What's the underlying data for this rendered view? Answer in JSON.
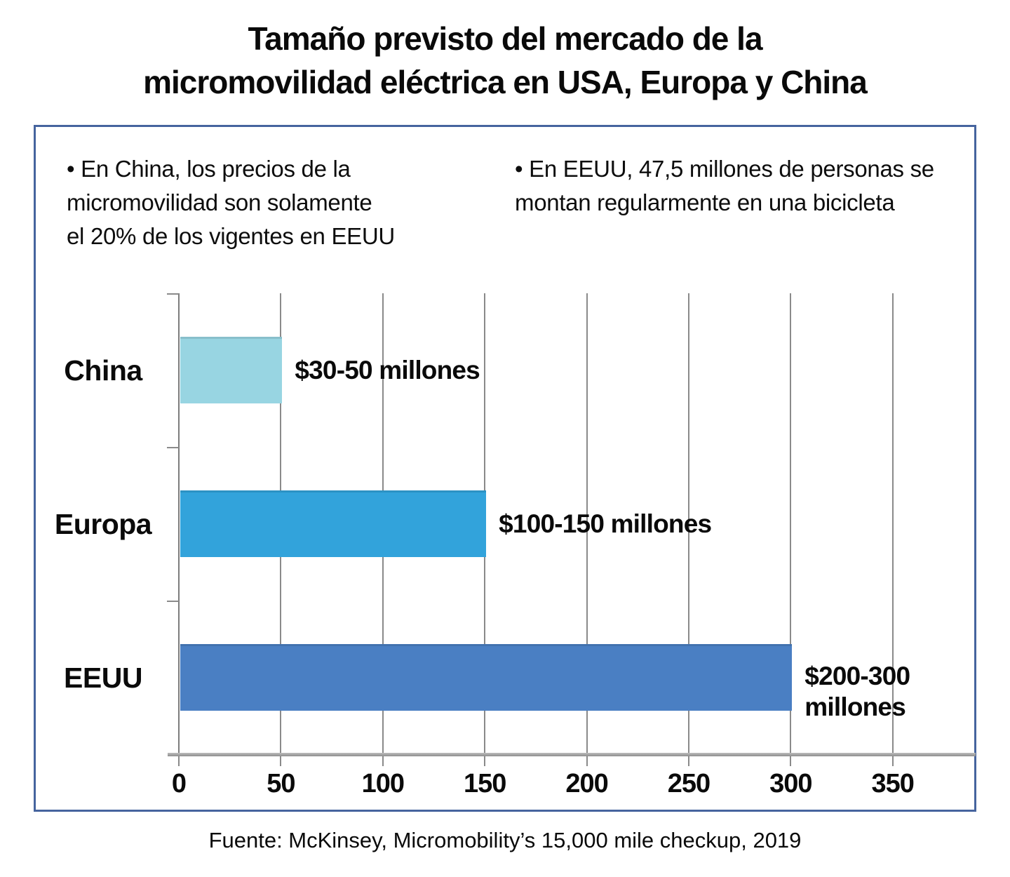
{
  "title": {
    "line1": "Tamaño previsto del mercado de la",
    "line2": "micromovilidad eléctrica en USA, Europa y China"
  },
  "bullets": {
    "left": {
      "line1": "• En China, los precios de la",
      "line2": "micromovilidad son solamente",
      "line3": "el 20% de los vigentes en EEUU"
    },
    "right": {
      "line1": "• En EEUU, 47,5 millones de personas se",
      "line2": "montan regularmente en una bicicleta"
    }
  },
  "source": "Fuente: McKinsey, Micromobility’s 15,000 mile checkup, 2019",
  "colors": {
    "panel_border": "#46649e",
    "gridline": "#8a8a8a",
    "axis": "#9a9a9a",
    "text": "#0a0a0a"
  },
  "chart_data": {
    "type": "bar",
    "orientation": "horizontal",
    "title": "Tamaño previsto del mercado de la micromovilidad eléctrica en USA, Europa y China",
    "xlabel": "",
    "ylabel": "",
    "categories": [
      "China",
      "Europa",
      "EEUU"
    ],
    "series": [
      {
        "name": "Tamaño previsto del mercado ($ millones)",
        "range_low": [
          30,
          100,
          200
        ],
        "range_high": [
          50,
          150,
          300
        ]
      }
    ],
    "plotted_values": [
      50,
      150,
      300
    ],
    "value_label_lines": [
      [
        "$30-50 millones"
      ],
      [
        "$100-150 millones"
      ],
      [
        "$200-300",
        "millones"
      ]
    ],
    "bar_colors": [
      "#98d5e2",
      "#32a3db",
      "#4a7fc3"
    ],
    "x_ticks": [
      "0",
      "50",
      "100",
      "150",
      "200",
      "250",
      "300",
      "350"
    ],
    "x_tick_values": [
      0,
      50,
      100,
      150,
      200,
      250,
      300,
      350
    ],
    "xlim": [
      0,
      390
    ],
    "grid": true,
    "legend": "none"
  }
}
